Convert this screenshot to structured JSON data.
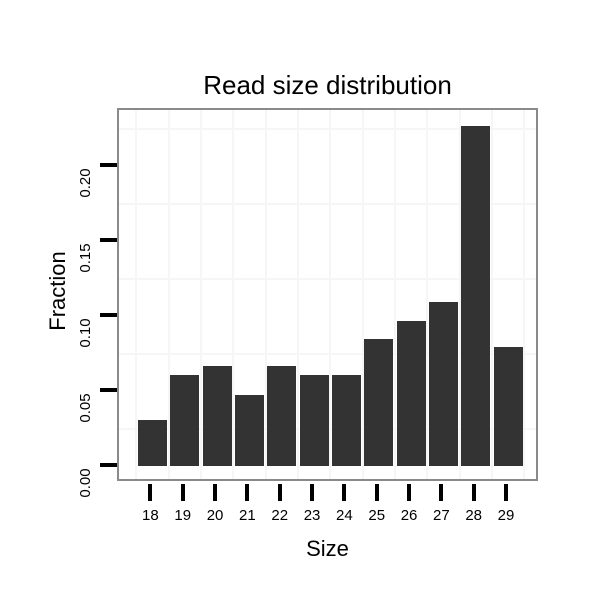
{
  "chart_data": {
    "type": "bar",
    "title": "Read size distribution",
    "xlabel": "Size",
    "ylabel": "Fraction",
    "categories": [
      "18",
      "19",
      "20",
      "21",
      "22",
      "23",
      "24",
      "25",
      "26",
      "27",
      "28",
      "29"
    ],
    "values": [
      0.031,
      0.061,
      0.067,
      0.048,
      0.067,
      0.061,
      0.061,
      0.085,
      0.097,
      0.11,
      0.227,
      0.08
    ],
    "y_ticks": [
      "0.00",
      "0.05",
      "0.10",
      "0.15",
      "0.20"
    ],
    "ylim": [
      -0.011,
      0.238
    ],
    "grid": "minor gridlines only (0.025 steps and category boundaries)",
    "legend": "none",
    "colors": {
      "bar_fill": "#333333",
      "panel_border": "#8a8a8a",
      "panel_background": "#ffffff",
      "gridline": "#f6f6f6",
      "tick": "#000000",
      "axis_text": "#000000",
      "page_background": "#ffffff"
    }
  }
}
